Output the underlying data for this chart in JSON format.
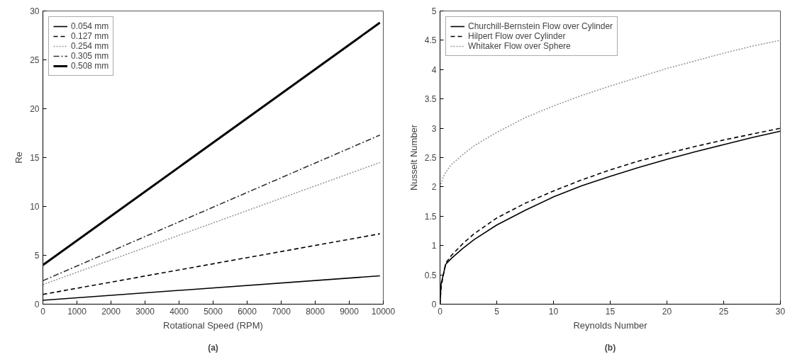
{
  "chart_data": [
    {
      "type": "line",
      "xlabel": "Rotational Speed (RPM)",
      "ylabel": "Re",
      "annotations": [
        "(a)"
      ],
      "xlim": [
        0,
        10000
      ],
      "ylim": [
        0,
        30
      ],
      "xticks": [
        0,
        1000,
        2000,
        3000,
        4000,
        5000,
        6000,
        7000,
        8000,
        9000,
        10000
      ],
      "yticks": [
        0,
        5,
        10,
        15,
        20,
        25,
        30
      ],
      "grid": false,
      "legend": "top left",
      "x": [
        0,
        9900
      ],
      "series": [
        {
          "name": "0.054 mm",
          "color": "#000000",
          "line_style": "solid",
          "values": [
            0.4,
            2.9
          ]
        },
        {
          "name": "0.127 mm",
          "color": "#000000",
          "line_style": "dashed",
          "values": [
            1.0,
            7.2
          ]
        },
        {
          "name": "0.254 mm",
          "color": "#999999",
          "line_style": "dotted",
          "values": [
            2.0,
            14.5
          ]
        },
        {
          "name": "0.305 mm",
          "color": "#333333",
          "line_style": "dashdot",
          "values": [
            2.4,
            17.3
          ]
        },
        {
          "name": "0.508 mm",
          "color": "#000000",
          "line_style": "solid",
          "values": [
            4.0,
            28.8
          ]
        }
      ]
    },
    {
      "type": "line",
      "xlabel": "Reynolds Number",
      "ylabel": "Nusselt Number",
      "annotations": [
        "(b)"
      ],
      "xlim": [
        0,
        30
      ],
      "ylim": [
        0,
        5
      ],
      "xticks": [
        0,
        5,
        10,
        15,
        20,
        25,
        30
      ],
      "yticks": [
        0,
        0.5,
        1,
        1.5,
        2,
        2.5,
        3,
        3.5,
        4,
        4.5,
        5
      ],
      "grid": false,
      "legend": "top left",
      "series": [
        {
          "name": "Churchill-Bernstein Flow over Cylinder",
          "color": "#000000",
          "line_style": "solid",
          "x": [
            0,
            0.1,
            0.5,
            1,
            2,
            3,
            5,
            7.5,
            10,
            12.5,
            15,
            17.5,
            20,
            22.5,
            25,
            27.5,
            30
          ],
          "values": [
            0,
            0.35,
            0.68,
            0.78,
            0.95,
            1.1,
            1.35,
            1.6,
            1.83,
            2.02,
            2.18,
            2.33,
            2.47,
            2.6,
            2.72,
            2.84,
            2.95
          ]
        },
        {
          "name": "Hilpert Flow over Cylinder",
          "color": "#000000",
          "line_style": "dashed",
          "x": [
            0,
            0.1,
            0.5,
            1,
            2,
            3,
            5,
            7.5,
            10,
            12.5,
            15,
            17.5,
            20,
            22.5,
            25,
            27.5,
            30
          ],
          "values": [
            0,
            0.3,
            0.7,
            0.83,
            1.03,
            1.2,
            1.47,
            1.72,
            1.93,
            2.12,
            2.29,
            2.44,
            2.57,
            2.69,
            2.8,
            2.9,
            3.0
          ]
        },
        {
          "name": "Whitaker Flow over Sphere",
          "color": "#999999",
          "line_style": "dotted",
          "x": [
            0,
            0.25,
            0.5,
            1,
            2,
            3,
            5,
            7.5,
            10,
            12.5,
            15,
            17.5,
            20,
            22.5,
            25,
            27.5,
            30
          ],
          "values": [
            2.0,
            2.15,
            2.25,
            2.38,
            2.55,
            2.7,
            2.93,
            3.18,
            3.38,
            3.56,
            3.72,
            3.87,
            4.02,
            4.15,
            4.28,
            4.4,
            4.5
          ]
        }
      ]
    }
  ]
}
